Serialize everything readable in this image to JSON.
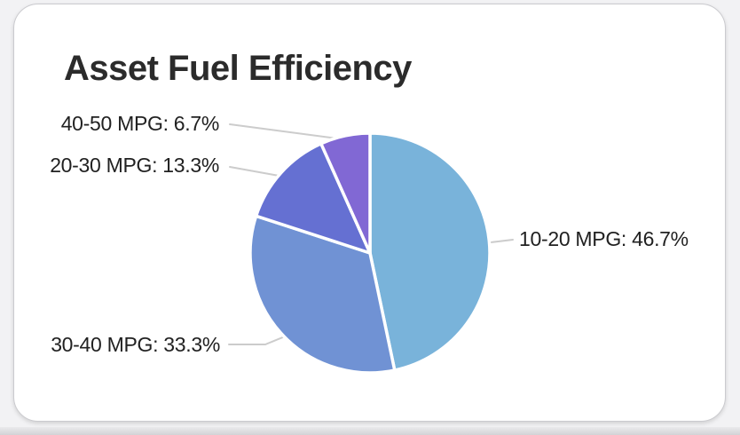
{
  "card": {
    "title": "Asset Fuel Efficiency"
  },
  "chart_data": {
    "type": "pie",
    "title": "Asset Fuel Efficiency",
    "unit": "%",
    "start_angle_deg": 0,
    "direction": "clockwise",
    "labels": "outside-with-leader-lines",
    "legend": "none",
    "slices": [
      {
        "label": "10-20 MPG",
        "value": 46.7,
        "display": "10-20 MPG: 46.7%",
        "color": "#79b3da"
      },
      {
        "label": "30-40 MPG",
        "value": 33.3,
        "display": "30-40 MPG: 33.3%",
        "color": "#7092d4"
      },
      {
        "label": "20-30 MPG",
        "value": 13.3,
        "display": "20-30 MPG: 13.3%",
        "color": "#6570d2"
      },
      {
        "label": "40-50 MPG",
        "value": 6.7,
        "display": "40-50 MPG: 6.7%",
        "color": "#8168d4"
      }
    ]
  },
  "colors": {
    "leader_line": "#cccccc",
    "slice_border": "#ffffff",
    "card_background": "#ffffff",
    "page_background": "#f2f2f4",
    "title_color": "#2b2b2b",
    "label_color": "#212121"
  }
}
